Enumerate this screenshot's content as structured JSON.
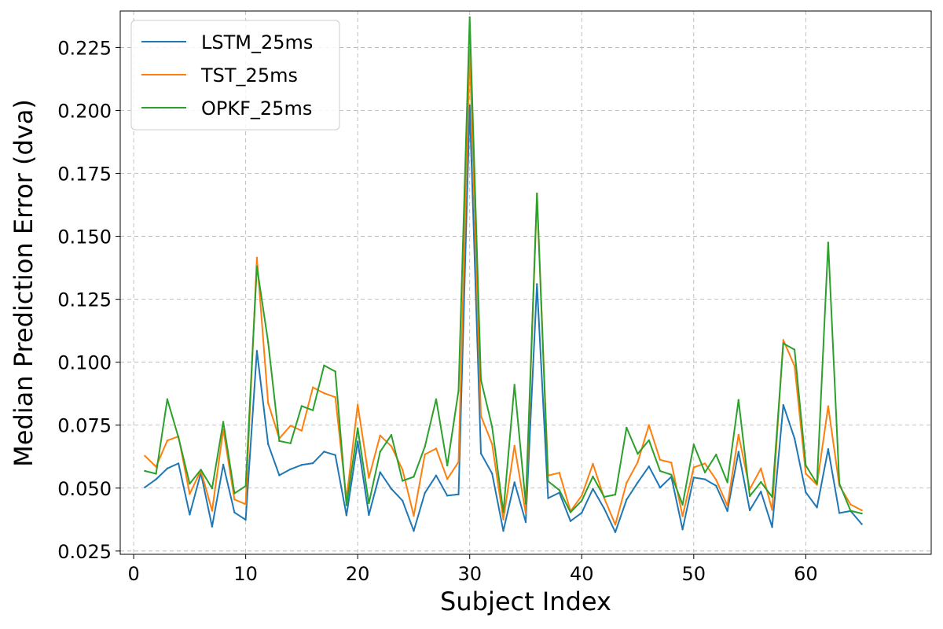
{
  "chart_data": {
    "type": "line",
    "title": "",
    "xlabel": "Subject Index",
    "ylabel": "Median Prediction Error (dva)",
    "xlim": [
      -1.2,
      71.2
    ],
    "ylim": [
      0.0237,
      0.2395
    ],
    "xticks": [
      0,
      10,
      20,
      30,
      40,
      50,
      60
    ],
    "xtick_labels": [
      "0",
      "10",
      "20",
      "30",
      "40",
      "50",
      "60"
    ],
    "yticks": [
      0.025,
      0.05,
      0.075,
      0.1,
      0.125,
      0.15,
      0.175,
      0.2,
      0.225
    ],
    "ytick_labels": [
      "0.025",
      "0.050",
      "0.075",
      "0.100",
      "0.125",
      "0.150",
      "0.175",
      "0.200",
      "0.225"
    ],
    "grid": true,
    "legend_position": "top-left",
    "x": [
      1,
      2,
      3,
      4,
      5,
      6,
      7,
      8,
      9,
      10,
      11,
      12,
      13,
      14,
      15,
      16,
      17,
      18,
      19,
      20,
      21,
      22,
      23,
      24,
      25,
      26,
      27,
      28,
      29,
      30,
      31,
      32,
      33,
      34,
      35,
      36,
      37,
      38,
      39,
      40,
      41,
      42,
      43,
      44,
      45,
      46,
      47,
      48,
      49,
      50,
      51,
      52,
      53,
      54,
      55,
      56,
      57,
      58,
      59,
      60,
      61,
      62,
      63,
      64,
      65
    ],
    "series": [
      {
        "name": "LSTM_25ms",
        "color": "#1f77b4",
        "values": [
          0.0503,
          0.0535,
          0.0578,
          0.0598,
          0.0395,
          0.056,
          0.0347,
          0.0593,
          0.0403,
          0.0374,
          0.1045,
          0.0675,
          0.0551,
          0.0575,
          0.0592,
          0.0599,
          0.0645,
          0.0631,
          0.0392,
          0.0685,
          0.0393,
          0.0563,
          0.0497,
          0.045,
          0.033,
          0.0481,
          0.055,
          0.047,
          0.0475,
          0.202,
          0.0638,
          0.0558,
          0.033,
          0.0523,
          0.0365,
          0.131,
          0.046,
          0.0482,
          0.0369,
          0.0402,
          0.0497,
          0.0419,
          0.0325,
          0.0454,
          0.0522,
          0.0586,
          0.0502,
          0.0545,
          0.0336,
          0.0542,
          0.0535,
          0.0509,
          0.0409,
          0.0644,
          0.0412,
          0.0486,
          0.0345,
          0.083,
          0.0697,
          0.0483,
          0.0423,
          0.0655,
          0.0401,
          0.0409,
          0.0357
        ]
      },
      {
        "name": "TST_25ms",
        "color": "#ff7f0e",
        "values": [
          0.0628,
          0.0585,
          0.0689,
          0.0705,
          0.0477,
          0.057,
          0.041,
          0.0733,
          0.0455,
          0.0436,
          0.1415,
          0.0838,
          0.0697,
          0.0748,
          0.0728,
          0.09,
          0.0877,
          0.0861,
          0.0457,
          0.0831,
          0.0541,
          0.0709,
          0.0666,
          0.0573,
          0.039,
          0.0634,
          0.0657,
          0.0536,
          0.0604,
          0.224,
          0.0787,
          0.0675,
          0.0375,
          0.0668,
          0.0399,
          0.1665,
          0.055,
          0.0561,
          0.0408,
          0.047,
          0.0596,
          0.0461,
          0.0355,
          0.0521,
          0.0603,
          0.075,
          0.0612,
          0.0601,
          0.0388,
          0.0582,
          0.0598,
          0.0533,
          0.043,
          0.0712,
          0.0496,
          0.0578,
          0.0413,
          0.1088,
          0.0985,
          0.0557,
          0.0513,
          0.0825,
          0.051,
          0.0435,
          0.0412
        ]
      },
      {
        "name": "OPKF_25ms",
        "color": "#2ca02c",
        "values": [
          0.0568,
          0.0557,
          0.0853,
          0.0701,
          0.0517,
          0.0573,
          0.0499,
          0.0763,
          0.0479,
          0.0508,
          0.138,
          0.108,
          0.0687,
          0.0678,
          0.0826,
          0.0809,
          0.0987,
          0.0963,
          0.0432,
          0.0738,
          0.044,
          0.0644,
          0.0711,
          0.0529,
          0.0545,
          0.0665,
          0.0853,
          0.059,
          0.0887,
          0.237,
          0.093,
          0.0744,
          0.0404,
          0.091,
          0.0438,
          0.167,
          0.0527,
          0.0492,
          0.0404,
          0.045,
          0.0546,
          0.0465,
          0.0474,
          0.074,
          0.0636,
          0.069,
          0.0568,
          0.0553,
          0.0434,
          0.0673,
          0.0562,
          0.0633,
          0.0523,
          0.085,
          0.0468,
          0.0524,
          0.0465,
          0.1075,
          0.105,
          0.059,
          0.0518,
          0.1475,
          0.0518,
          0.041,
          0.0399
        ]
      }
    ]
  }
}
